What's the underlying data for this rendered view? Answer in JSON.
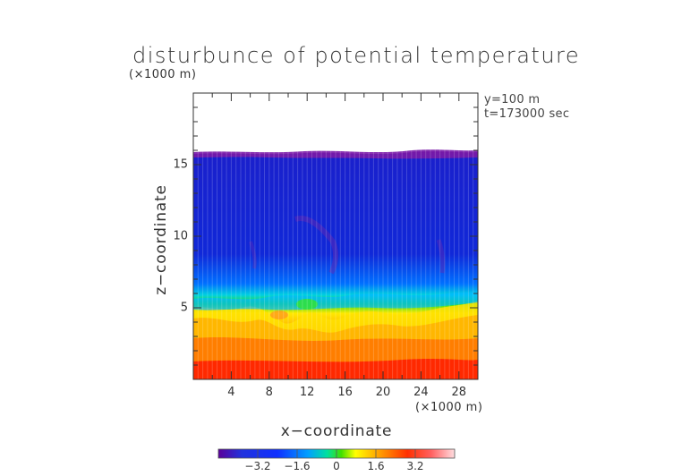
{
  "chart_data": {
    "type": "heatmap",
    "title": "disturbunce of potential temperature",
    "z_units": "(×1000 m)",
    "x_units": "(×1000 m)",
    "xlabel": "x−coordinate",
    "ylabel": "z−coordinate",
    "annotations": [
      "y=100 m",
      "t=173000 sec"
    ],
    "xlim": [
      0,
      30
    ],
    "ylim": [
      0,
      20
    ],
    "x_ticks": [
      "4",
      "8",
      "12",
      "16",
      "20",
      "24",
      "28"
    ],
    "y_ticks": [
      "5",
      "10",
      "15"
    ],
    "colorbar": {
      "ticks": [
        "−3.2",
        "−1.6",
        "0",
        "1.6",
        "3.2"
      ],
      "range": [
        -4.8,
        4.8
      ]
    },
    "field_summary": {
      "blank_above_z": 16,
      "upper_layer_value": -3.2,
      "lower_layer_value": 3.2
    },
    "colormap": [
      "#5a0099",
      "#2233dd",
      "#00a0ff",
      "#00e0a0",
      "#40e000",
      "#ffff00",
      "#ffa000",
      "#ff4000",
      "#ff0000",
      "#ff8080",
      "#ffdde0"
    ]
  }
}
